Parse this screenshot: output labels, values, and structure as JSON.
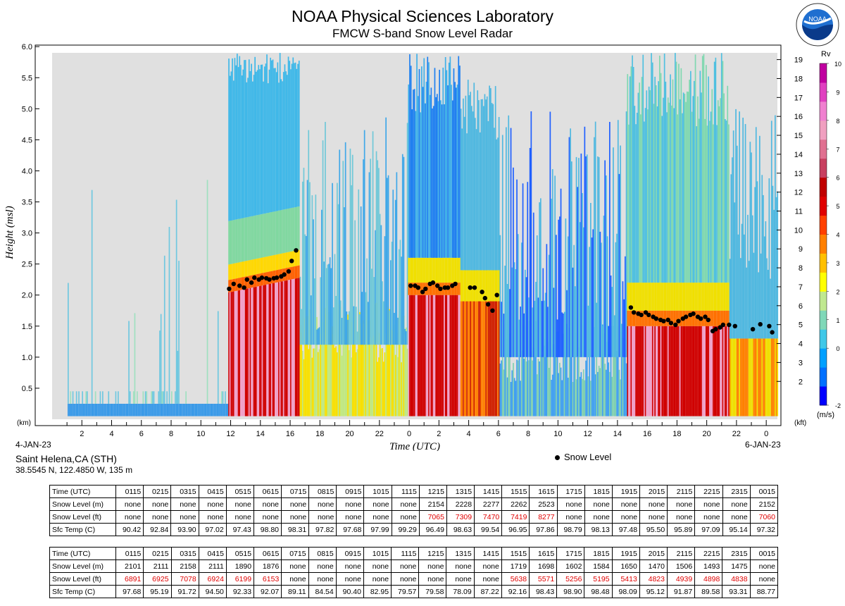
{
  "header": {
    "title": "NOAA Physical Sciences Laboratory",
    "subtitle": "FMCW S-band Snow Level Radar",
    "logo_text": "NOAA"
  },
  "chart_data": {
    "type": "heatmap",
    "xlabel": "Time (UTC)",
    "ylabel": "Height (msl)",
    "y_unit_left": "(km)",
    "y_unit_right": "(kft)",
    "ylim": [
      0,
      6.0
    ],
    "y_ticks_km": [
      0.5,
      1.0,
      1.5,
      2.0,
      2.5,
      3.0,
      3.5,
      4.0,
      4.5,
      5.0,
      5.5,
      6.0
    ],
    "y_ticks_kft": [
      2,
      3,
      4,
      5,
      6,
      7,
      8,
      9,
      10,
      11,
      12,
      13,
      14,
      15,
      16,
      17,
      18,
      19
    ],
    "x_ticks": [
      "2",
      "4",
      "6",
      "8",
      "10",
      "12",
      "14",
      "16",
      "18",
      "20",
      "22",
      "0",
      "2",
      "4",
      "6",
      "8",
      "10",
      "12",
      "14",
      "16",
      "18",
      "20",
      "22",
      "0"
    ],
    "date_start": "4-JAN-23",
    "date_end": "6-JAN-23",
    "colorbar": {
      "title": "Rv",
      "unit": "(m/s)",
      "ticks": [
        "10",
        "9",
        "8",
        "7",
        "6",
        "5",
        "4",
        "3",
        "2",
        "1",
        "0",
        "-2"
      ],
      "colors": [
        "#0000ff",
        "#0070ff",
        "#00a0ff",
        "#40c8e8",
        "#80d8b8",
        "#c0e890",
        "#ffff00",
        "#ffc000",
        "#ff8000",
        "#ff4000",
        "#e00000",
        "#c00000",
        "#c84060",
        "#e07090",
        "#f0a0c0",
        "#f080d0",
        "#e040c0",
        "#c000a0"
      ]
    },
    "legend": [
      {
        "name": "Snow Level",
        "marker": "dot",
        "color": "#000000"
      }
    ],
    "series": [
      {
        "name": "Snow Level",
        "x_hours": [
          11.9,
          12.2,
          12.6,
          12.9,
          13.1,
          13.4,
          13.6,
          13.9,
          14.1,
          14.4,
          14.6,
          14.9,
          15.1,
          15.4,
          15.6,
          15.9,
          16.1,
          16.4,
          24.1,
          24.4,
          24.6,
          24.9,
          25.1,
          25.4,
          25.6,
          25.9,
          26.1,
          26.4,
          26.6,
          26.9,
          27.1,
          28.1,
          28.4,
          28.9,
          29.1,
          29.3,
          29.6,
          29.9,
          38.9,
          39.1,
          39.4,
          39.6,
          39.9,
          40.1,
          40.4,
          40.6,
          40.9,
          41.1,
          41.4,
          41.6,
          41.9,
          42.1,
          42.4,
          42.6,
          42.9,
          43.1,
          43.4,
          43.6,
          43.9,
          44.1,
          44.4,
          44.6,
          44.9,
          45.1,
          45.5,
          45.9,
          47.1,
          47.6,
          48.2,
          48.4
        ],
        "y_km": [
          2.1,
          2.18,
          2.15,
          2.12,
          2.25,
          2.2,
          2.28,
          2.25,
          2.28,
          2.27,
          2.25,
          2.27,
          2.28,
          2.3,
          2.33,
          2.38,
          2.55,
          2.72,
          2.15,
          2.15,
          2.12,
          2.05,
          2.1,
          2.18,
          2.2,
          2.15,
          2.1,
          2.12,
          2.12,
          2.15,
          2.18,
          2.12,
          2.12,
          2.05,
          1.95,
          1.85,
          1.75,
          2.0,
          1.8,
          1.72,
          1.7,
          1.68,
          1.72,
          1.68,
          1.65,
          1.62,
          1.6,
          1.58,
          1.6,
          1.55,
          1.52,
          1.58,
          1.62,
          1.65,
          1.68,
          1.7,
          1.65,
          1.62,
          1.65,
          1.6,
          1.42,
          1.45,
          1.48,
          1.52,
          1.52,
          1.5,
          1.45,
          1.53,
          1.5,
          1.4
        ]
      }
    ]
  },
  "station": {
    "name": "Saint Helena,CA (STH)",
    "coords": "38.5545 N, 122.4850 W, 135 m"
  },
  "tables": [
    {
      "rows": [
        {
          "label": "Time (UTC)",
          "red": false,
          "values": [
            "0115",
            "0215",
            "0315",
            "0415",
            "0515",
            "0615",
            "0715",
            "0815",
            "0915",
            "1015",
            "1115",
            "1215",
            "1315",
            "1415",
            "1515",
            "1615",
            "1715",
            "1815",
            "1915",
            "2015",
            "2115",
            "2215",
            "2315",
            "0015"
          ]
        },
        {
          "label": "Snow Level (m)",
          "red": false,
          "values": [
            "none",
            "none",
            "none",
            "none",
            "none",
            "none",
            "none",
            "none",
            "none",
            "none",
            "none",
            "2154",
            "2228",
            "2277",
            "2262",
            "2523",
            "none",
            "none",
            "none",
            "none",
            "none",
            "none",
            "none",
            "2152"
          ]
        },
        {
          "label": "Snow Level (ft)",
          "red": true,
          "values": [
            "none",
            "none",
            "none",
            "none",
            "none",
            "none",
            "none",
            "none",
            "none",
            "none",
            "none",
            "7065",
            "7309",
            "7470",
            "7419",
            "8277",
            "none",
            "none",
            "none",
            "none",
            "none",
            "none",
            "none",
            "7060"
          ]
        },
        {
          "label": "Sfc Temp (C)",
          "red": false,
          "values": [
            "90.42",
            "92.84",
            "93.90",
            "97.02",
            "97.43",
            "98.80",
            "98.31",
            "97.82",
            "97.68",
            "97.99",
            "99.29",
            "96.49",
            "98.63",
            "99.54",
            "96.95",
            "97.86",
            "98.79",
            "98.13",
            "97.48",
            "95.50",
            "95.89",
            "97.09",
            "95.14",
            "97.32"
          ]
        }
      ]
    },
    {
      "rows": [
        {
          "label": "Time (UTC)",
          "red": false,
          "values": [
            "0115",
            "0215",
            "0315",
            "0415",
            "0515",
            "0615",
            "0715",
            "0815",
            "0915",
            "1015",
            "1115",
            "1215",
            "1315",
            "1415",
            "1515",
            "1615",
            "1715",
            "1815",
            "1915",
            "2015",
            "2115",
            "2215",
            "2315",
            "0015"
          ]
        },
        {
          "label": "Snow Level (m)",
          "red": false,
          "values": [
            "2101",
            "2111",
            "2158",
            "2111",
            "1890",
            "1876",
            "none",
            "none",
            "none",
            "none",
            "none",
            "none",
            "none",
            "none",
            "1719",
            "1698",
            "1602",
            "1584",
            "1650",
            "1470",
            "1506",
            "1493",
            "1475",
            "none"
          ]
        },
        {
          "label": "Snow Level (ft)",
          "red": true,
          "values": [
            "6891",
            "6925",
            "7078",
            "6924",
            "6199",
            "6153",
            "none",
            "none",
            "none",
            "none",
            "none",
            "none",
            "none",
            "none",
            "5638",
            "5571",
            "5256",
            "5195",
            "5413",
            "4823",
            "4939",
            "4898",
            "4838",
            "none"
          ]
        },
        {
          "label": "Sfc Temp (C)",
          "red": false,
          "values": [
            "97.68",
            "95.19",
            "91.72",
            "94.50",
            "92.33",
            "92.07",
            "89.11",
            "84.54",
            "90.40",
            "82.95",
            "79.57",
            "79.58",
            "78.09",
            "87.22",
            "92.16",
            "98.43",
            "98.90",
            "98.48",
            "98.09",
            "95.12",
            "91.87",
            "89.58",
            "93.31",
            "88.77"
          ]
        }
      ]
    }
  ]
}
